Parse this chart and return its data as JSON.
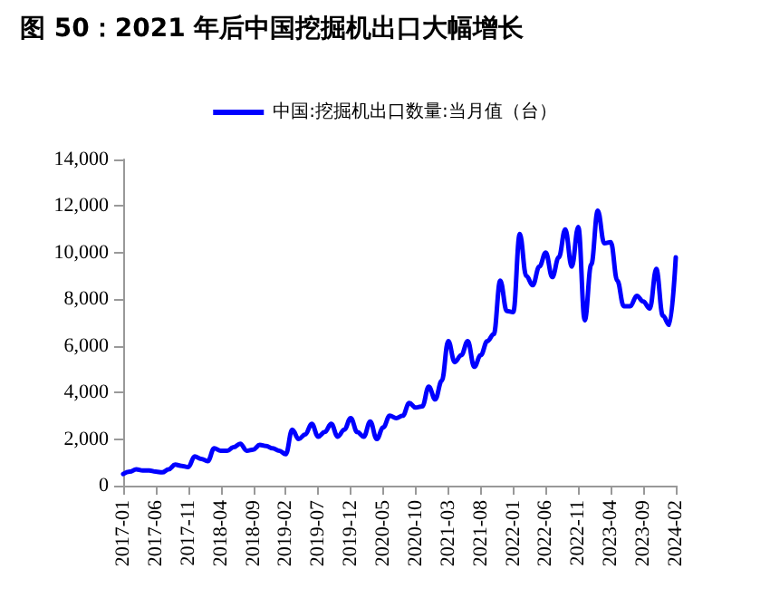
{
  "chart_data": {
    "type": "line",
    "title": "图 50：2021 年后中国挖掘机出口大幅增长",
    "categories": [
      "2017-01",
      null,
      null,
      null,
      null,
      "2017-06",
      null,
      null,
      null,
      null,
      "2017-11",
      null,
      null,
      null,
      null,
      "2018-04",
      null,
      null,
      null,
      null,
      "2018-09",
      null,
      null,
      null,
      null,
      "2019-02",
      null,
      null,
      null,
      null,
      "2019-07",
      null,
      null,
      null,
      null,
      "2019-12",
      null,
      null,
      null,
      null,
      "2020-05",
      null,
      null,
      null,
      null,
      "2020-10",
      null,
      null,
      null,
      null,
      "2021-03",
      null,
      null,
      null,
      null,
      "2021-08",
      null,
      null,
      null,
      null,
      "2022-01",
      null,
      null,
      null,
      null,
      "2022-06",
      null,
      null,
      null,
      null,
      "2022-11",
      null,
      null,
      null,
      null,
      "2023-04",
      null,
      null,
      null,
      null,
      "2023-09",
      null,
      null,
      null,
      null,
      "2024-02"
    ],
    "series": [
      {
        "name": "中国:挖掘机出口数量:当月值（台）",
        "color": "#0000ff",
        "values": [
          500,
          600,
          700,
          650,
          650,
          600,
          570,
          700,
          900,
          850,
          800,
          1250,
          1150,
          1050,
          1600,
          1500,
          1500,
          1650,
          1800,
          1500,
          1550,
          1750,
          1700,
          1600,
          1500,
          1350,
          2400,
          2000,
          2200,
          2650,
          2100,
          2300,
          2650,
          2100,
          2400,
          2900,
          2300,
          2100,
          2750,
          2000,
          2500,
          3000,
          2900,
          3000,
          3550,
          3350,
          3400,
          4250,
          3700,
          4500,
          6200,
          5300,
          5600,
          6200,
          5100,
          5600,
          6200,
          6500,
          8800,
          7500,
          7450,
          10800,
          9000,
          8600,
          9400,
          10000,
          8950,
          9800,
          11000,
          9400,
          11100,
          7100,
          9500,
          11800,
          10400,
          10450,
          8800,
          7700,
          7700,
          8150,
          7900,
          7600,
          9300,
          7300,
          6900,
          9800
        ]
      }
    ],
    "ylim": [
      0,
      14000
    ],
    "yticks": [
      0,
      {
        "value": 2000,
        "label": "2,000"
      },
      {
        "value": 4000,
        "label": "4,000"
      },
      {
        "value": 6000,
        "label": "6,000"
      },
      {
        "value": 8000,
        "label": "8,000"
      },
      {
        "value": 10000,
        "label": "10,000"
      },
      {
        "value": 12000,
        "label": "12,000"
      },
      {
        "value": 14000,
        "label": "14,000"
      }
    ],
    "grid": false,
    "legend": "top",
    "marker": "none",
    "line_style": "solid"
  }
}
